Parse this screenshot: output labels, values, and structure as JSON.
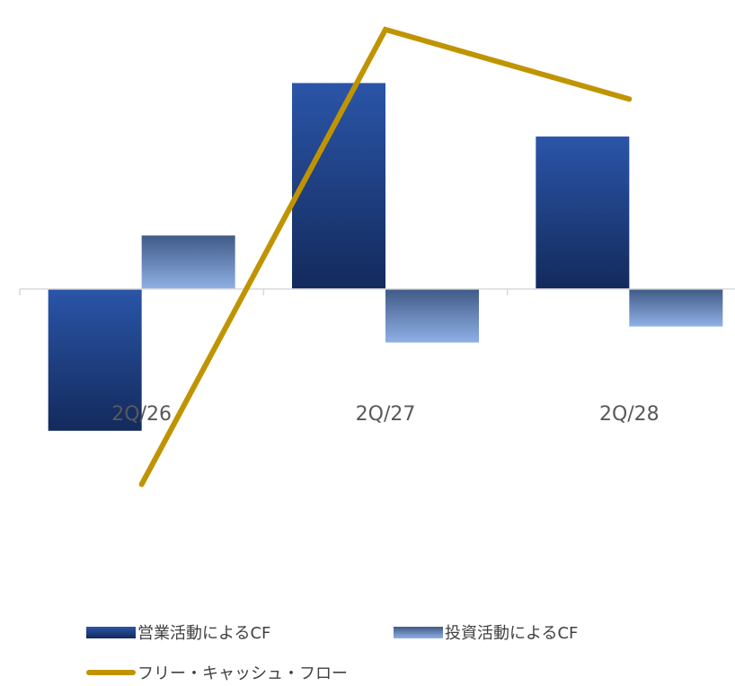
{
  "chart_data": {
    "type": "bar",
    "categories": [
      "2Q/26",
      "2Q/27",
      "2Q/28"
    ],
    "series": [
      {
        "name": "営業活動によるCF",
        "kind": "bar",
        "values": [
          -53,
          77,
          57
        ],
        "color_top": "#2b55a8",
        "color_bottom": "#132a5c"
      },
      {
        "name": "投資活動によるCF",
        "kind": "bar",
        "values": [
          20,
          -20,
          -14
        ],
        "color_top": "#3f5a86",
        "color_bottom": "#8fb0e6"
      },
      {
        "name": "フリー・キャッシュ・フロー",
        "kind": "line",
        "values": [
          -73,
          97,
          71
        ],
        "color": "#c09400"
      }
    ],
    "ylim": [
      -90,
      102
    ],
    "title": "",
    "xlabel": "",
    "ylabel": "",
    "grid": false,
    "legend": "bottom"
  }
}
